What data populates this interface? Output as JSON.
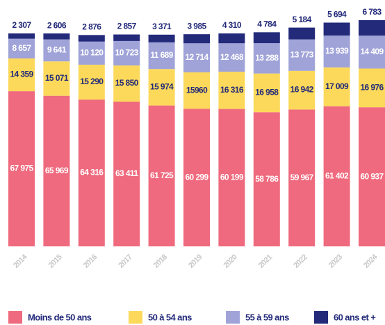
{
  "chart_data": {
    "type": "stacked_bar",
    "categories": [
      "2014",
      "2015",
      "2016",
      "2017",
      "2018",
      "2019",
      "2020",
      "2021",
      "2022",
      "2023",
      "2024"
    ],
    "series": [
      {
        "name": "Moins de 50 ans",
        "color": "#ef6a7e",
        "values": [
          67975,
          65969,
          64316,
          63411,
          61725,
          60299,
          60199,
          58786,
          59967,
          61402,
          60937
        ],
        "value_labels": [
          "67 975",
          "65 969",
          "64 316",
          "63 411",
          "61 725",
          "60 299",
          "60 199",
          "58 786",
          "59 967",
          "61 402",
          "60 937"
        ]
      },
      {
        "name": "50 à 54 ans",
        "color": "#fcd95a",
        "values": [
          14359,
          15071,
          15290,
          15850,
          15974,
          15960,
          16316,
          16958,
          16942,
          17009,
          16976
        ],
        "value_labels": [
          "14 359",
          "15 071",
          "15 290",
          "15 850",
          "15 974",
          "15960",
          "16 316",
          "16 958",
          "16 942",
          "17 009",
          "16 976"
        ]
      },
      {
        "name": "55 à 59 ans",
        "color": "#a0a3d8",
        "values": [
          8657,
          9641,
          10120,
          10723,
          11689,
          12714,
          12468,
          13288,
          13773,
          13939,
          14409
        ],
        "value_labels": [
          "8 657",
          "9 641",
          "10 120",
          "10 723",
          "11 689",
          "12 714",
          "12 468",
          "13 288",
          "13 773",
          "13 939",
          "14 409"
        ]
      },
      {
        "name": "60 ans et +",
        "color": "#232a7a",
        "values": [
          2307,
          2606,
          2876,
          2857,
          3371,
          3985,
          4310,
          4784,
          5184,
          5694,
          6783
        ],
        "value_labels": [
          "2 307",
          "2 606",
          "2 876",
          "2 857",
          "3 371",
          "3 985",
          "4 310",
          "4 784",
          "5 184",
          "5 694",
          "6 783"
        ]
      }
    ]
  }
}
